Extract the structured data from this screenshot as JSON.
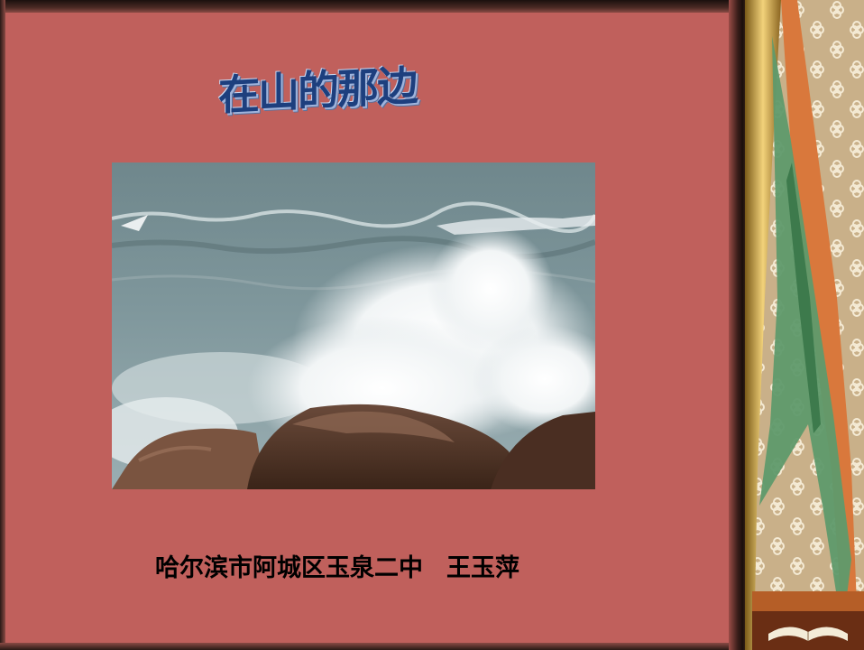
{
  "slide": {
    "title": "在山的那边",
    "caption_school": "哈尔滨市阿城区玉泉二中",
    "caption_author": "王玉萍",
    "background_color": "#c0605c",
    "title_color": "#1d3f7e"
  },
  "images": {
    "main_photo": "sea-wave-crashing-on-rocks",
    "side_decoration": "floral-pattern-ribbon-panel",
    "corner_image": "open-book-icon"
  }
}
